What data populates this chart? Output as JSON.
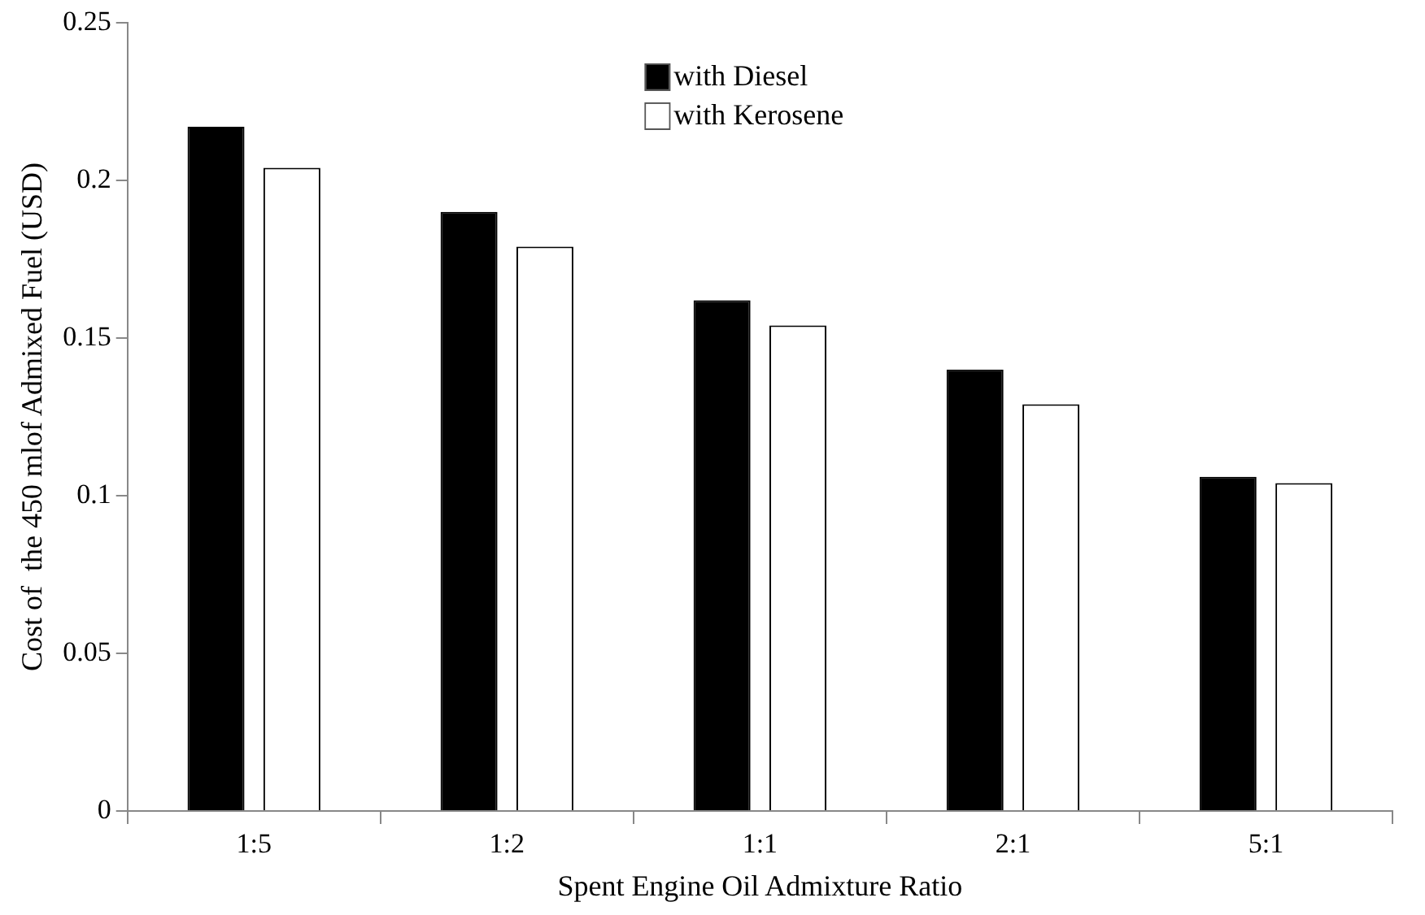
{
  "chart_data": {
    "type": "bar",
    "xlabel": "Spent Engine Oil Admixture Ratio",
    "ylabel": "Cost of  the 450 mlof Admixed Fuel (USD)",
    "categories": [
      "1:5",
      "1:2",
      "1:1",
      "2:1",
      "5:1"
    ],
    "series": [
      {
        "name": "with Diesel",
        "color": "#000000",
        "values": [
          0.217,
          0.19,
          0.162,
          0.14,
          0.106
        ]
      },
      {
        "name": "with Kerosene",
        "color": "#ffffff",
        "values": [
          0.204,
          0.179,
          0.154,
          0.129,
          0.104
        ]
      }
    ],
    "ylim": [
      0,
      0.25
    ],
    "yticks": [
      0,
      0.05,
      0.1,
      0.15,
      0.2,
      0.25
    ],
    "grid": false,
    "legend": "top"
  }
}
